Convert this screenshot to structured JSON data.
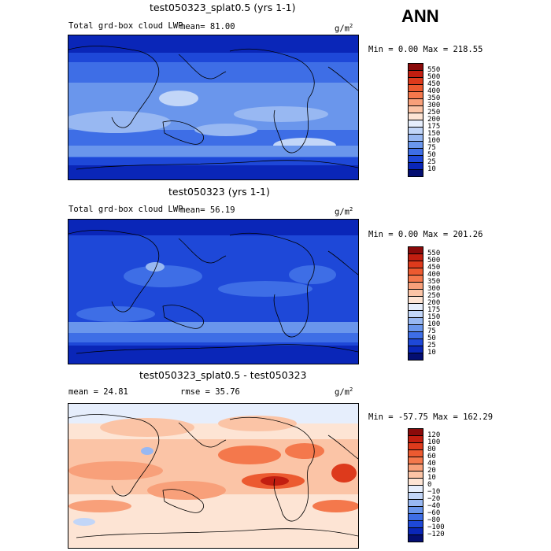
{
  "header": {
    "season": "ANN"
  },
  "panels": [
    {
      "title": "test050323_splat0.5 (yrs 1-1)",
      "variable": "Total grd-box cloud LWP",
      "mean_text": "mean=  81.00",
      "units": "g/m",
      "units_exp": "2",
      "minmax": "Min =    0.00 Max = 218.55"
    },
    {
      "title": "test050323 (yrs 1-1)",
      "variable": "Total grd-box cloud LWP",
      "mean_text": "mean=  56.19",
      "units": "g/m",
      "units_exp": "2",
      "minmax": "Min =    0.00 Max = 201.26"
    },
    {
      "title": "test050323_splat0.5 - test050323",
      "mean_text": "mean =  24.81",
      "rmse_text": "rmse =  35.76",
      "units": "g/m",
      "units_exp": "2",
      "minmax": "Min = -57.75 Max = 162.29"
    }
  ],
  "chart_data": [
    {
      "type": "heatmap",
      "title": "test050323_splat0.5 (yrs 1-1)",
      "variable": "Total grd-box cloud LWP",
      "units": "g/m2",
      "mean": 81.0,
      "min": 0.0,
      "max": 218.55,
      "colorbar": {
        "levels": [
          "550",
          "500",
          "450",
          "400",
          "350",
          "300",
          "250",
          "200",
          "175",
          "150",
          "100",
          "75",
          "50",
          "25",
          "10"
        ],
        "colors": [
          "#8a0a0a",
          "#c21e10",
          "#dd3a1c",
          "#ec5a30",
          "#f4784c",
          "#f8a07a",
          "#fbc4a6",
          "#fde4d4",
          "#e6eefc",
          "#c2d6f8",
          "#98b8f2",
          "#6a96ec",
          "#3e6ee6",
          "#1e48d8",
          "#0a26b8",
          "#040e72"
        ]
      }
    },
    {
      "type": "heatmap",
      "title": "test050323 (yrs 1-1)",
      "variable": "Total grd-box cloud LWP",
      "units": "g/m2",
      "mean": 56.19,
      "min": 0.0,
      "max": 201.26,
      "colorbar": {
        "levels": [
          "550",
          "500",
          "450",
          "400",
          "350",
          "300",
          "250",
          "200",
          "175",
          "150",
          "100",
          "75",
          "50",
          "25",
          "10"
        ],
        "colors": [
          "#8a0a0a",
          "#c21e10",
          "#dd3a1c",
          "#ec5a30",
          "#f4784c",
          "#f8a07a",
          "#fbc4a6",
          "#fde4d4",
          "#e6eefc",
          "#c2d6f8",
          "#98b8f2",
          "#6a96ec",
          "#3e6ee6",
          "#1e48d8",
          "#0a26b8",
          "#040e72"
        ]
      }
    },
    {
      "type": "heatmap",
      "title": "test050323_splat0.5 - test050323",
      "units": "g/m2",
      "mean": 24.81,
      "rmse": 35.76,
      "min": -57.75,
      "max": 162.29,
      "colorbar": {
        "levels": [
          "120",
          "100",
          "80",
          "60",
          "40",
          "20",
          "10",
          "0",
          "−10",
          "−20",
          "−40",
          "−60",
          "−80",
          "−100",
          "−120"
        ],
        "colors": [
          "#8a0a0a",
          "#c21e10",
          "#dd3a1c",
          "#ec5a30",
          "#f4784c",
          "#f8a07a",
          "#fbc4a6",
          "#fde4d4",
          "#e6eefc",
          "#c2d6f8",
          "#98b8f2",
          "#6a96ec",
          "#3e6ee6",
          "#1e48d8",
          "#0a26b8",
          "#040e72"
        ]
      }
    }
  ]
}
